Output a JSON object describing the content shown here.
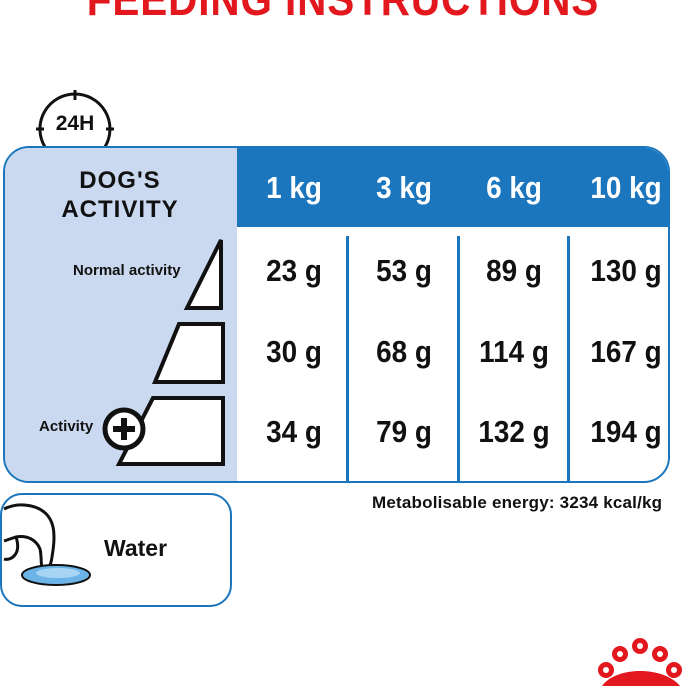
{
  "title": "FEEDING INSTRUCTIONS",
  "clock_label": "24H",
  "table": {
    "activity_header_line1": "DOG'S",
    "activity_header_line2": "ACTIVITY",
    "weights": [
      "1 kg",
      "3 kg",
      "6 kg",
      "10 kg"
    ],
    "rows": [
      {
        "label": "Normal activity",
        "values": [
          "23 g",
          "53 g",
          "89 g",
          "130 g"
        ]
      },
      {
        "label": "",
        "values": [
          "30 g",
          "68 g",
          "114 g",
          "167 g"
        ]
      },
      {
        "label": "Activity",
        "values": [
          "34 g",
          "79 g",
          "132 g",
          "194 g"
        ]
      }
    ]
  },
  "metabolisable_energy": "Metabolisable energy: 3234 kcal/kg",
  "water_label": "Water",
  "colors": {
    "title_red": "#e3171e",
    "brand_blue": "#1b76bd",
    "activity_bg": "#cad9ef",
    "water_fill": "#6cb4e8"
  }
}
